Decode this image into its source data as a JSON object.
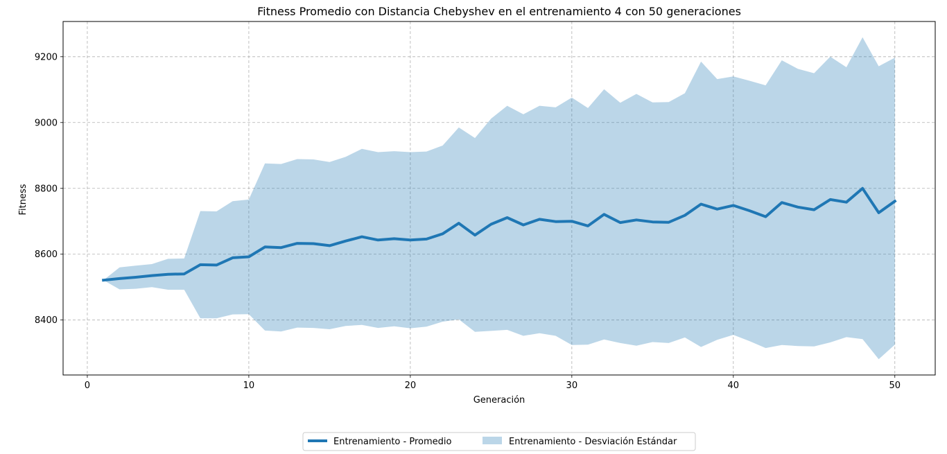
{
  "chart_data": {
    "type": "line",
    "title": "Fitness Promedio con Distancia Chebyshev en el entrenamiento 4 con 50 generaciones",
    "xlabel": "Generación",
    "ylabel": "Fitness",
    "xlim": [
      -1.5,
      52.5
    ],
    "ylim": [
      8233,
      9307
    ],
    "xticks": [
      0,
      10,
      20,
      30,
      40,
      50
    ],
    "yticks": [
      8400,
      8600,
      8800,
      9000,
      9200
    ],
    "grid": true,
    "legend_position": "bottom-center",
    "x": [
      1,
      2,
      3,
      4,
      5,
      6,
      7,
      8,
      9,
      10,
      11,
      12,
      13,
      14,
      15,
      16,
      17,
      18,
      19,
      20,
      21,
      22,
      23,
      24,
      25,
      26,
      27,
      28,
      29,
      30,
      31,
      32,
      33,
      34,
      35,
      36,
      37,
      38,
      39,
      40,
      41,
      42,
      43,
      44,
      45,
      46,
      47,
      48,
      49,
      50
    ],
    "series": [
      {
        "name": "Entrenamiento  - Promedio",
        "kind": "line",
        "color": "#1f77b4",
        "values": [
          8521,
          8526,
          8530,
          8535,
          8539,
          8540,
          8568,
          8567,
          8589,
          8592,
          8622,
          8620,
          8633,
          8632,
          8626,
          8640,
          8653,
          8643,
          8647,
          8643,
          8646,
          8662,
          8694,
          8658,
          8691,
          8711,
          8689,
          8706,
          8699,
          8700,
          8686,
          8721,
          8696,
          8704,
          8698,
          8697,
          8718,
          8752,
          8737,
          8748,
          8732,
          8714,
          8757,
          8743,
          8735,
          8766,
          8758,
          8800,
          8726,
          8761
        ]
      },
      {
        "name": "Entrenamiento  - Desviación Estándar",
        "kind": "band",
        "color": "#1f77b4",
        "opacity": 0.3,
        "lower": [
          8521,
          8493,
          8495,
          8500,
          8492,
          8492,
          8405,
          8405,
          8417,
          8418,
          8368,
          8365,
          8377,
          8376,
          8372,
          8382,
          8385,
          8376,
          8381,
          8375,
          8380,
          8395,
          8402,
          8364,
          8367,
          8370,
          8352,
          8360,
          8352,
          8324,
          8325,
          8341,
          8330,
          8322,
          8333,
          8330,
          8347,
          8318,
          8340,
          8355,
          8336,
          8315,
          8324,
          8321,
          8320,
          8332,
          8348,
          8342,
          8281,
          8325
        ],
        "upper": [
          8521,
          8560,
          8565,
          8570,
          8586,
          8587,
          8731,
          8730,
          8761,
          8766,
          8876,
          8874,
          8889,
          8888,
          8880,
          8896,
          8920,
          8910,
          8913,
          8910,
          8912,
          8930,
          8985,
          8953,
          9012,
          9051,
          9025,
          9051,
          9046,
          9076,
          9044,
          9101,
          9060,
          9087,
          9061,
          9062,
          9089,
          9185,
          9132,
          9140,
          9127,
          9113,
          9189,
          9163,
          9150,
          9200,
          9168,
          9259,
          9171,
          9197
        ]
      }
    ]
  }
}
